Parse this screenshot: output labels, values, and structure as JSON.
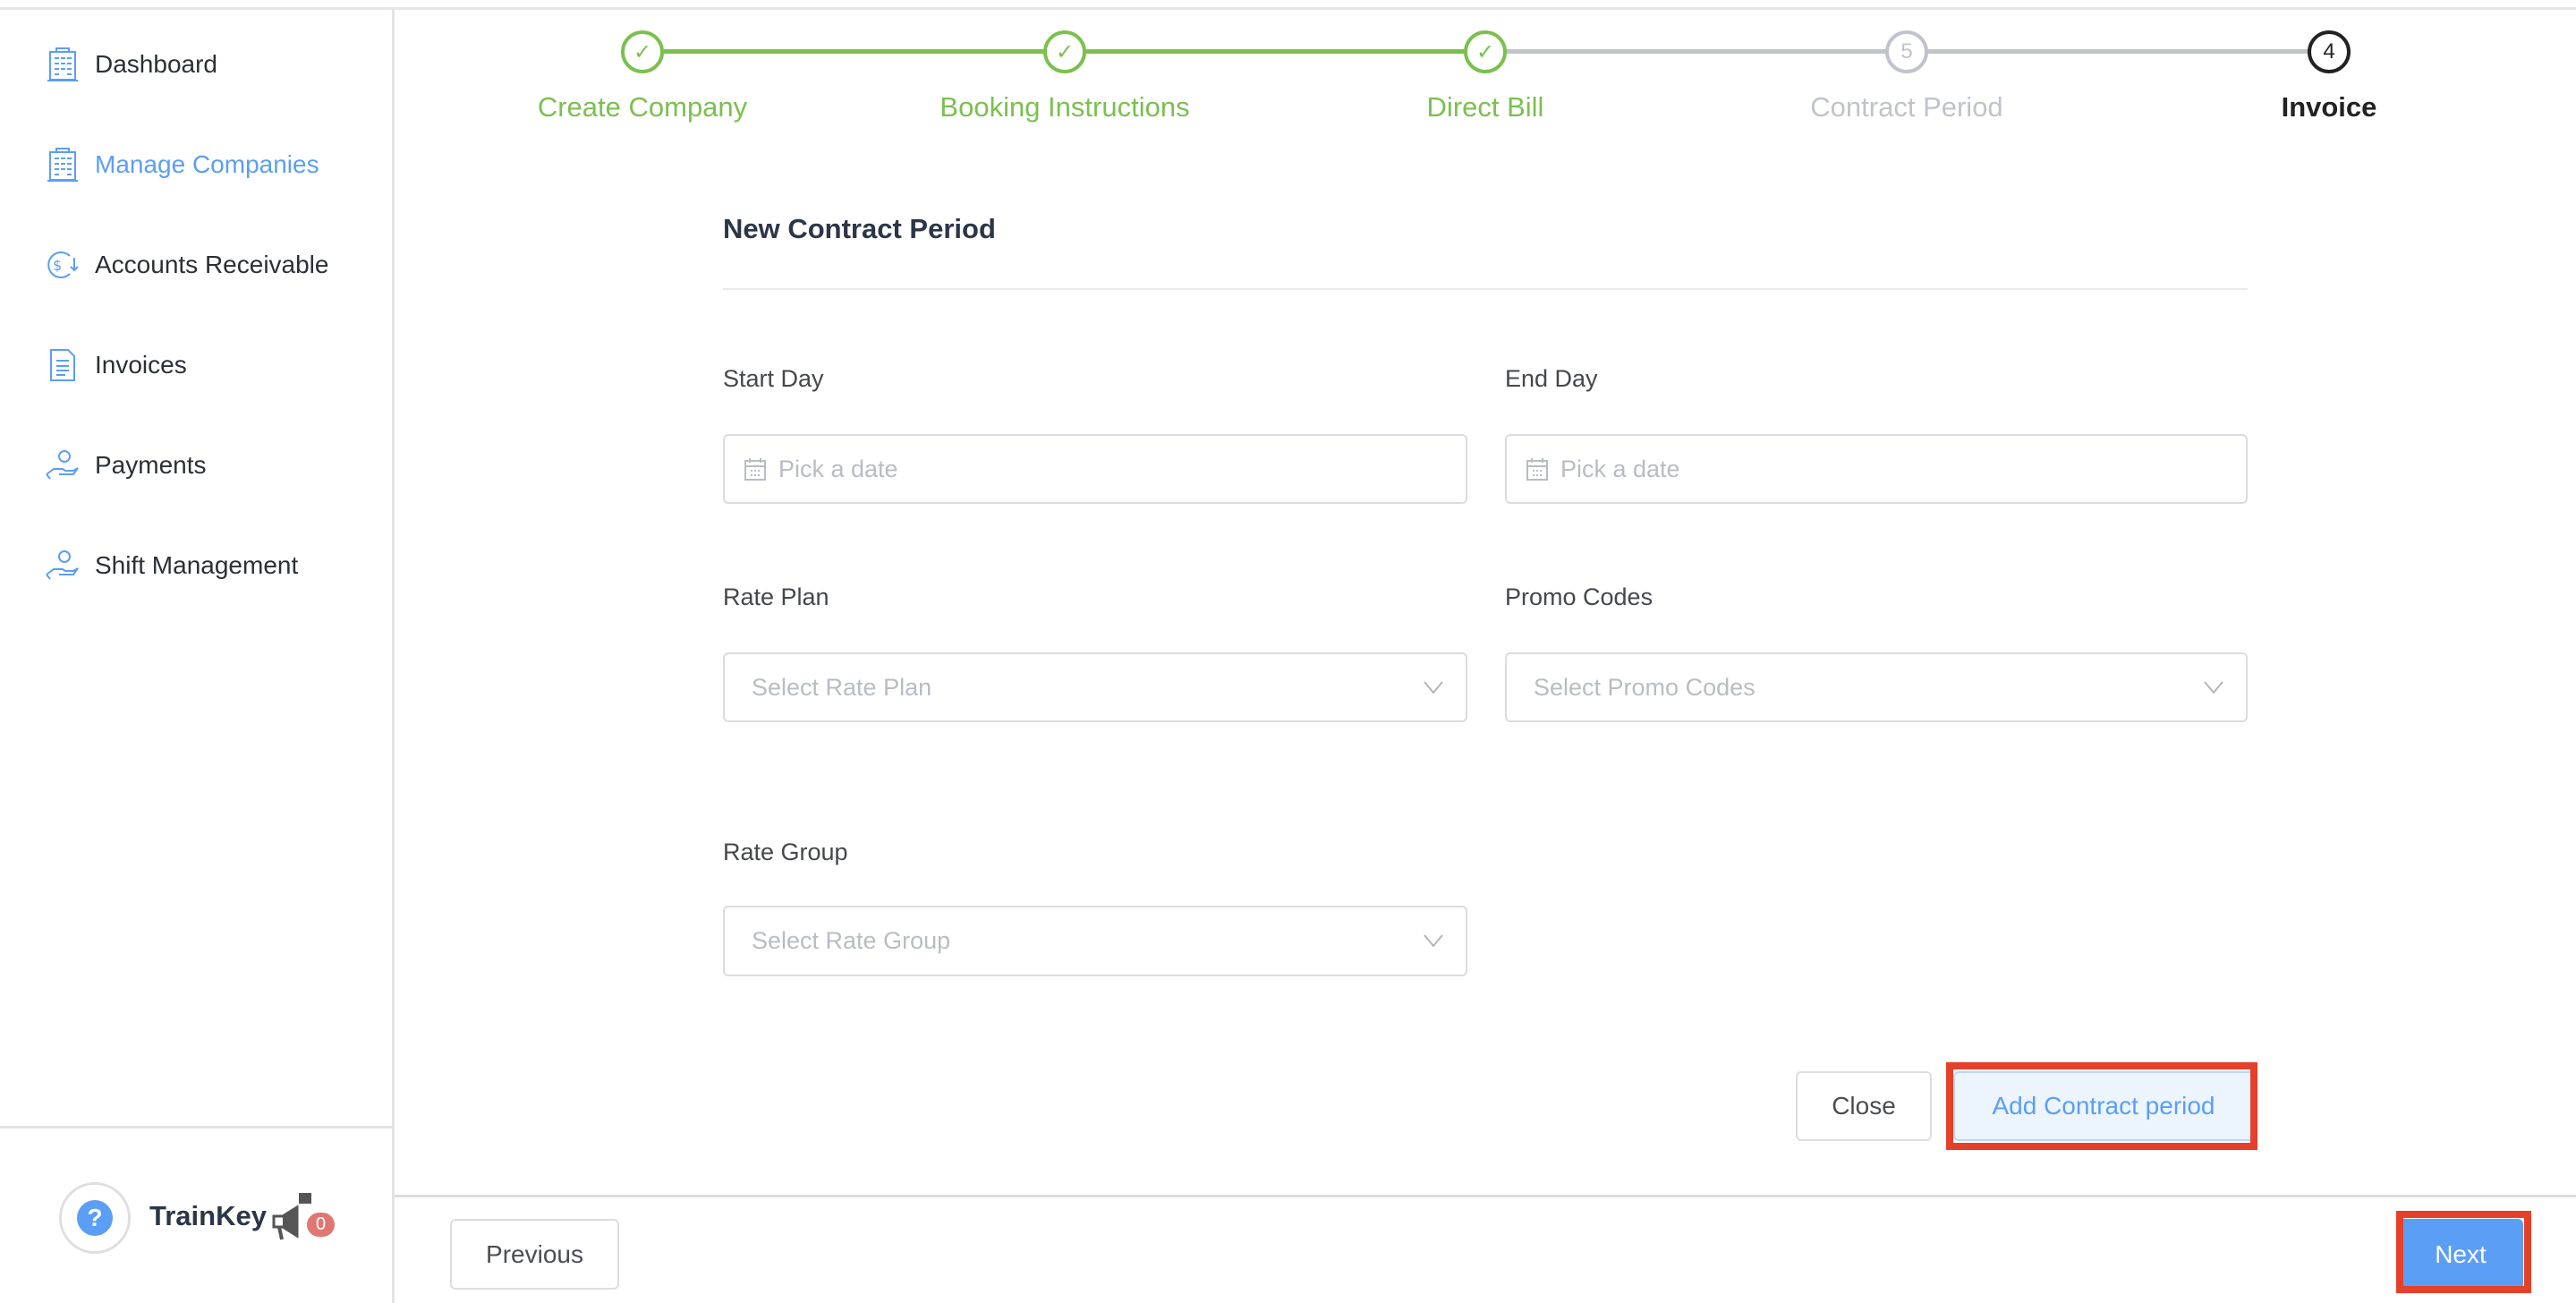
{
  "sidebar": {
    "items": [
      {
        "label": "Dashboard",
        "icon": "building-icon",
        "active": false
      },
      {
        "label": "Manage Companies",
        "icon": "building-icon",
        "active": true
      },
      {
        "label": "Accounts Receivable",
        "icon": "dollar-receive-icon",
        "active": false
      },
      {
        "label": "Invoices",
        "icon": "invoice-document-icon",
        "active": false
      },
      {
        "label": "Payments",
        "icon": "hand-coin-icon",
        "active": false
      },
      {
        "label": "Shift Management",
        "icon": "hand-coin-icon",
        "active": false
      }
    ],
    "footer": {
      "help_icon": "?",
      "brand": "TrainKey",
      "notification_count": "0"
    }
  },
  "stepper": {
    "steps": [
      {
        "label": "Create Company",
        "status": "done"
      },
      {
        "label": "Booking Instructions",
        "status": "done"
      },
      {
        "label": "Direct Bill",
        "status": "done"
      },
      {
        "label": "Contract Period",
        "status": "pending",
        "number": "5"
      },
      {
        "label": "Invoice",
        "status": "current",
        "number": "4"
      }
    ]
  },
  "form": {
    "title": "New Contract Period",
    "start_day": {
      "label": "Start Day",
      "placeholder": "Pick a date"
    },
    "end_day": {
      "label": "End Day",
      "placeholder": "Pick a date"
    },
    "rate_plan": {
      "label": "Rate Plan",
      "placeholder": "Select Rate Plan"
    },
    "promo_codes": {
      "label": "Promo Codes",
      "placeholder": "Select Promo Codes"
    },
    "rate_group": {
      "label": "Rate Group",
      "placeholder": "Select Rate Group"
    },
    "close_label": "Close",
    "add_label": "Add Contract period"
  },
  "footer": {
    "previous_label": "Previous",
    "next_label": "Next"
  },
  "colors": {
    "accent": "#5b9ef5",
    "done": "#7bc04f",
    "pending": "#c0c3cc",
    "highlight": "#e5402a",
    "badge": "#e07772"
  }
}
